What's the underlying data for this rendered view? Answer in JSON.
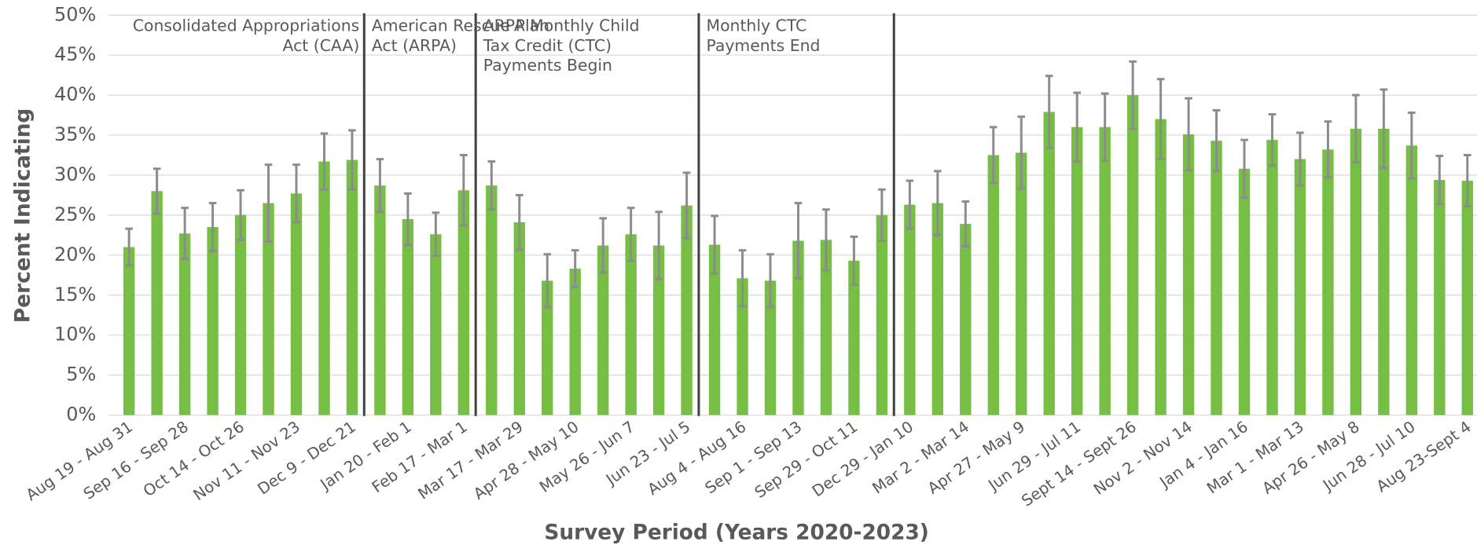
{
  "chart_data": {
    "type": "bar",
    "xlabel": "Survey Period (Years 2020-2023)",
    "ylabel": "Percent Indicating",
    "categories": [
      "Aug 19 - Aug 31",
      null,
      "Sep 16 - Sep 28",
      null,
      "Oct 14 - Oct 26",
      null,
      "Nov 11 - Nov 23",
      null,
      "Dec 9 - Dec 21",
      null,
      "Jan 20 - Feb 1",
      null,
      "Feb 17 - Mar 1",
      null,
      "Mar 17 - Mar 29",
      null,
      "Apr 28 - May 10",
      null,
      "May 26 - Jun 7",
      null,
      "Jun 23 - Jul 5",
      null,
      "Aug 4 - Aug 16",
      null,
      "Sep 1 - Sep 13",
      null,
      "Sep 29 - Oct 11",
      null,
      "Dec 29 - Jan 10",
      null,
      "Mar 2 - Mar 14",
      null,
      "Apr 27 - May 9",
      null,
      "Jun 29 - Jul 11",
      null,
      "Sept 14 - Sept 26",
      null,
      "Nov 2 - Nov 14",
      null,
      "Jan 4 - Jan 16",
      null,
      "Mar 1 - Mar 13",
      null,
      "Apr 26 - May 8",
      null,
      "Jun 28 - Jul 10",
      null,
      "Aug 23-Sept 4"
    ],
    "values": [
      21,
      28,
      22.7,
      23.5,
      25,
      26.5,
      27.7,
      31.7,
      31.9,
      28.7,
      24.5,
      22.6,
      28.1,
      28.7,
      24.1,
      16.8,
      18.3,
      21.2,
      22.6,
      21.2,
      26.2,
      21.3,
      17.1,
      16.8,
      21.8,
      21.9,
      19.3,
      25,
      26.3,
      26.5,
      23.9,
      32.5,
      32.8,
      37.9,
      36,
      36,
      40,
      37,
      35.1,
      34.3,
      30.8,
      34.4,
      32,
      33.2,
      35.8,
      35.8,
      33.7,
      29.4,
      29.3
    ],
    "errors": [
      2.3,
      2.8,
      3.2,
      3,
      3.1,
      4.8,
      3.6,
      3.5,
      3.7,
      3.3,
      3.2,
      2.7,
      4.4,
      3,
      3.4,
      3.3,
      2.3,
      3.4,
      3.3,
      4.2,
      4.1,
      3.6,
      3.5,
      3.3,
      4.7,
      3.8,
      3,
      3.2,
      3,
      4,
      2.8,
      3.5,
      4.5,
      4.5,
      4.3,
      4.2,
      4.2,
      5,
      4.5,
      3.8,
      3.6,
      3.2,
      3.3,
      3.5,
      4.2,
      4.9,
      4.1,
      3,
      3.2
    ],
    "color": "#77bf44",
    "error_color": "#8c8c8c",
    "ylim": [
      0,
      50
    ],
    "yticks": [
      {
        "value": 0,
        "label": "0%"
      },
      {
        "value": 5,
        "label": "5%"
      },
      {
        "value": 10,
        "label": "10%"
      },
      {
        "value": 15,
        "label": "15%"
      },
      {
        "value": 20,
        "label": "20%"
      },
      {
        "value": 25,
        "label": "25%"
      },
      {
        "value": 30,
        "label": "30%"
      },
      {
        "value": 35,
        "label": "35%"
      },
      {
        "value": 40,
        "label": "40%"
      },
      {
        "value": 45,
        "label": "45%"
      },
      {
        "value": 50,
        "label": "50%"
      }
    ],
    "grid": true,
    "annotations": [
      [
        "Consolidated Appropriations",
        "Act (CAA)"
      ],
      [
        "American Rescue Plan",
        "Act (ARPA)"
      ],
      [
        "ARPA Monthly Child",
        "Tax Credit (CTC)",
        "Payments Begin"
      ],
      [
        "Monthly CTC",
        "Payments End"
      ]
    ]
  }
}
